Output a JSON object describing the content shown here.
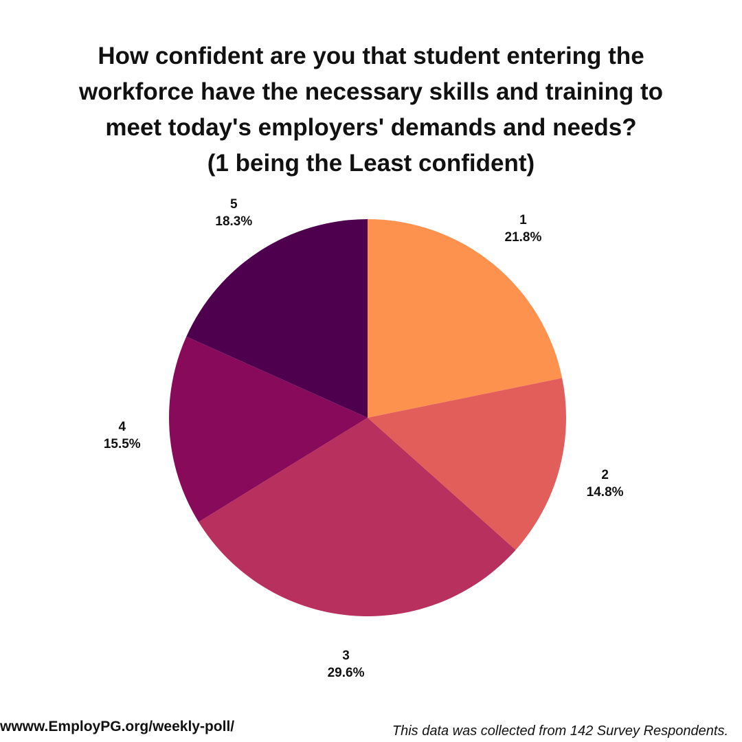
{
  "chart_data": {
    "type": "pie",
    "title_lines": [
      "How confident are you that student entering the",
      "workforce have the necessary skills and training to",
      "meet today's employers' demands and needs?",
      "(1 being the Least confident)"
    ],
    "start_angle_deg": 0,
    "direction": "clockwise",
    "slices": [
      {
        "label": "1",
        "value": 21.8,
        "value_label": "21.8%",
        "color": "#FD924F"
      },
      {
        "label": "2",
        "value": 14.8,
        "value_label": "14.8%",
        "color": "#E25E5A"
      },
      {
        "label": "3",
        "value": 29.6,
        "value_label": "29.6%",
        "color": "#B8305D"
      },
      {
        "label": "4",
        "value": 15.5,
        "value_label": "15.5%",
        "color": "#870B5A"
      },
      {
        "label": "5",
        "value": 18.3,
        "value_label": "18.3%",
        "color": "#4E004F"
      }
    ]
  },
  "footer": {
    "url": "wwww.EmployPG.org/weekly-poll/",
    "note": "This data was collected from 142 Survey Respondents."
  }
}
